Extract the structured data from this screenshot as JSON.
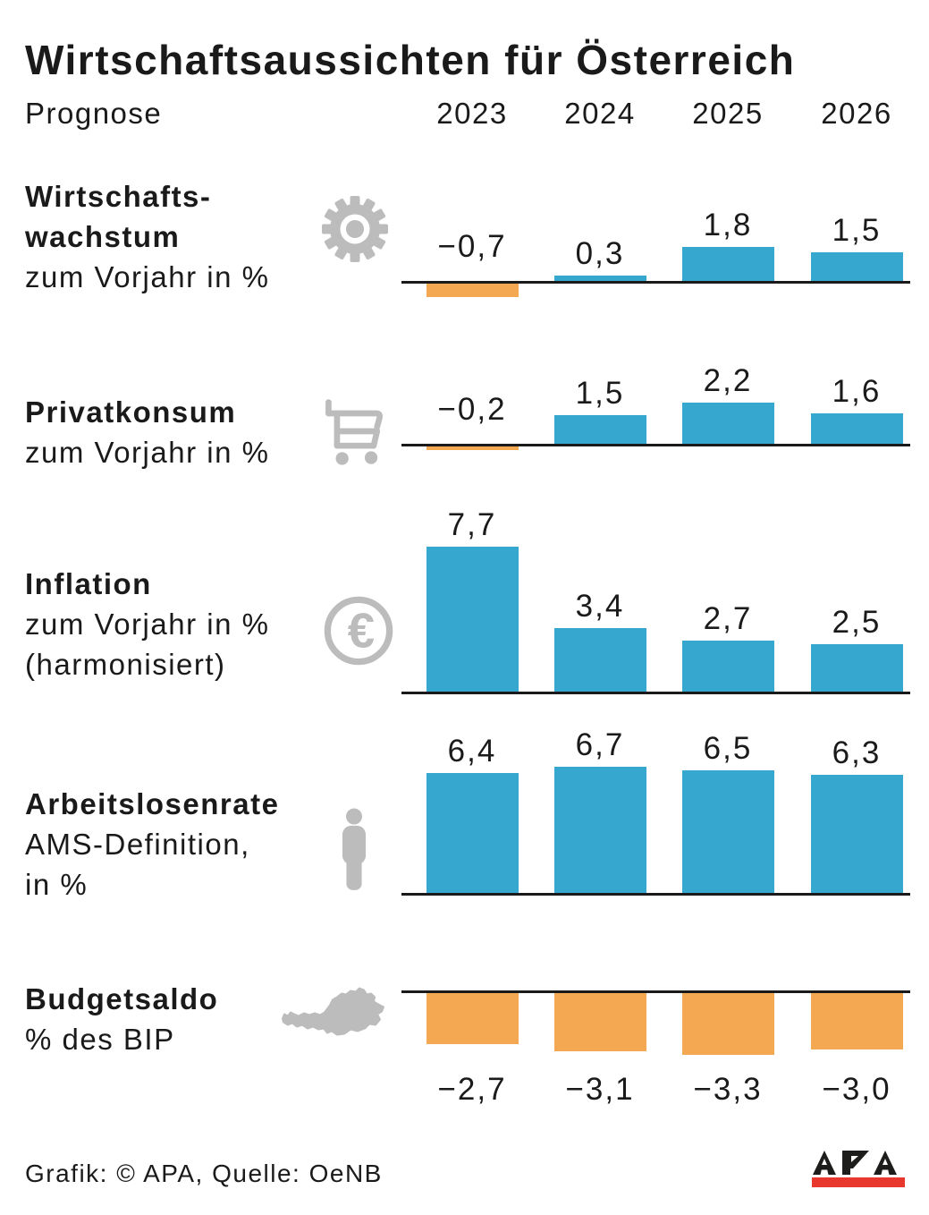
{
  "header": {
    "title": "Wirtschaftsaussichten für Österreich",
    "prognose_label": "Prognose",
    "years": [
      "2023",
      "2024",
      "2025",
      "2026"
    ]
  },
  "chart_data": {
    "type": "bar",
    "title": "Wirtschaftsaussichten für Österreich",
    "categories": [
      "2023",
      "2024",
      "2025",
      "2026"
    ],
    "legend_position": "none",
    "grid": false,
    "colors": {
      "positive_bar": "#36a7cf",
      "negative_bar": "#f5a852",
      "baseline": "#1a1a1a",
      "icon_gray": "#bcbcbc"
    },
    "rows": [
      {
        "name": "Wirtschaftswachstum",
        "label_lines": [
          "Wirtschafts-",
          "wachstum"
        ],
        "sublabel_lines": [
          "zum Vorjahr in %"
        ],
        "icon": "gear-icon",
        "values": [
          -0.7,
          0.3,
          1.8,
          1.5
        ],
        "value_labels": [
          "−0,7",
          "0,3",
          "1,8",
          "1,5"
        ]
      },
      {
        "name": "Privatkonsum",
        "label_lines": [
          "Privatkonsum"
        ],
        "sublabel_lines": [
          "zum Vorjahr in %"
        ],
        "icon": "shopping-cart-icon",
        "values": [
          -0.2,
          1.5,
          2.2,
          1.6
        ],
        "value_labels": [
          "−0,2",
          "1,5",
          "2,2",
          "1,6"
        ]
      },
      {
        "name": "Inflation",
        "label_lines": [
          "Inflation"
        ],
        "sublabel_lines": [
          "zum Vorjahr in %",
          "(harmonisiert)"
        ],
        "icon": "euro-icon",
        "values": [
          7.7,
          3.4,
          2.7,
          2.5
        ],
        "value_labels": [
          "7,7",
          "3,4",
          "2,7",
          "2,5"
        ]
      },
      {
        "name": "Arbeitslosenrate",
        "label_lines": [
          "Arbeitslosenrate"
        ],
        "sublabel_lines": [
          "AMS-Definition,",
          "in %"
        ],
        "icon": "person-icon",
        "values": [
          6.4,
          6.7,
          6.5,
          6.3
        ],
        "value_labels": [
          "6,4",
          "6,7",
          "6,5",
          "6,3"
        ]
      },
      {
        "name": "Budgetsaldo",
        "label_lines": [
          "Budgetsaldo"
        ],
        "sublabel_lines": [
          "% des BIP"
        ],
        "icon": "austria-map-icon",
        "values": [
          -2.7,
          -3.1,
          -3.3,
          -3.0
        ],
        "value_labels": [
          "−2,7",
          "−3,1",
          "−3,3",
          "−3,0"
        ]
      }
    ]
  },
  "footer": {
    "credit": "Grafik: © APA, Quelle: OeNB",
    "logo_text": "APA",
    "logo_red": "#e8372c"
  }
}
